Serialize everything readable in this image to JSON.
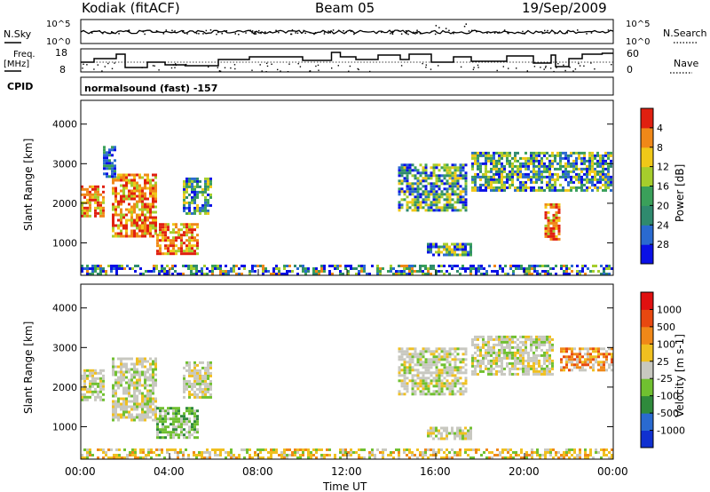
{
  "header": {
    "station": "Kodiak (fitACF)",
    "beam": "Beam 05",
    "date": "19/Sep/2009"
  },
  "nsky_panel": {
    "left_label": "N.Sky",
    "right_label": "N.Search",
    "left_ticks": [
      "10^5",
      "10^0"
    ],
    "right_ticks": [
      "10^5",
      "10^0"
    ]
  },
  "freq_panel": {
    "left_label_1": "Freq.",
    "left_label_2": "[MHz]",
    "right_label": "Nave",
    "left_ticks": [
      "18",
      "8"
    ],
    "right_ticks": [
      "60",
      "0"
    ]
  },
  "cpid": {
    "label": "CPID",
    "mode": "normalsound (fast) -157"
  },
  "x_axis": {
    "label": "Time UT",
    "ticks": [
      "00:00",
      "04:00",
      "08:00",
      "12:00",
      "16:00",
      "20:00",
      "00:00"
    ]
  },
  "chart_data": [
    {
      "type": "heatmap",
      "quantity": "Power",
      "colorbar_label": "Power [dB]",
      "xlabel": "Time UT",
      "ylabel": "Slant Range [km]",
      "xlim": [
        0,
        24
      ],
      "ylim": [
        180,
        4600
      ],
      "y_ticks": [
        "1000",
        "2000",
        "3000",
        "4000"
      ],
      "colorbar_ticks": [
        "4",
        "8",
        "12",
        "16",
        "20",
        "24",
        "28"
      ],
      "colorbar_colors": [
        "#0a10e6",
        "#2a6ad0",
        "#2f8a6e",
        "#3aa05a",
        "#a6cd2c",
        "#f0c818",
        "#f08818",
        "#e02010"
      ],
      "regions": [
        {
          "t0": 0.0,
          "t1": 1.0,
          "r0": 1650,
          "r1": 2450,
          "level": "high"
        },
        {
          "t0": 1.4,
          "t1": 3.4,
          "r0": 1200,
          "r1": 2750,
          "level": "high"
        },
        {
          "t0": 3.4,
          "t1": 5.3,
          "r0": 750,
          "r1": 1500,
          "level": "high"
        },
        {
          "t0": 4.6,
          "t1": 5.9,
          "r0": 1750,
          "r1": 2650,
          "level": "mid"
        },
        {
          "t0": 1.0,
          "t1": 1.6,
          "r0": 2700,
          "r1": 3450,
          "level": "low"
        },
        {
          "t0": 14.3,
          "t1": 17.4,
          "r0": 1800,
          "r1": 3000,
          "level": "mid"
        },
        {
          "t0": 15.6,
          "t1": 17.6,
          "r0": 700,
          "r1": 1000,
          "level": "mid"
        },
        {
          "t0": 17.6,
          "t1": 23.9,
          "r0": 2300,
          "r1": 3300,
          "level": "mid"
        },
        {
          "t0": 20.9,
          "t1": 21.5,
          "r0": 1100,
          "r1": 2000,
          "level": "high"
        },
        {
          "t0": 0.0,
          "t1": 24.0,
          "r0": 200,
          "r1": 450,
          "level": "ground"
        }
      ]
    },
    {
      "type": "heatmap",
      "quantity": "Velocity",
      "colorbar_label": "Velocity [m s-1]",
      "xlabel": "Time UT",
      "ylabel": "Slant Range [km]",
      "xlim": [
        0,
        24
      ],
      "ylim": [
        180,
        4600
      ],
      "y_ticks": [
        "1000",
        "2000",
        "3000",
        "4000"
      ],
      "colorbar_ticks": [
        "1000",
        "500",
        "100",
        "25",
        "-25",
        "-100",
        "-500",
        "-1000"
      ],
      "colorbar_colors": [
        "#1030d0",
        "#2a6ad0",
        "#2f8a3c",
        "#70c030",
        "#c8c8c0",
        "#f0c020",
        "#f08818",
        "#e84810",
        "#e01010"
      ],
      "regions": [
        {
          "t0": 0.0,
          "t1": 1.0,
          "r0": 1650,
          "r1": 2450,
          "level": "gray"
        },
        {
          "t0": 1.4,
          "t1": 3.4,
          "r0": 1200,
          "r1": 2750,
          "level": "gray"
        },
        {
          "t0": 3.4,
          "t1": 5.3,
          "r0": 750,
          "r1": 1500,
          "level": "green"
        },
        {
          "t0": 4.6,
          "t1": 5.9,
          "r0": 1750,
          "r1": 2650,
          "level": "gray"
        },
        {
          "t0": 14.3,
          "t1": 17.4,
          "r0": 1800,
          "r1": 3000,
          "level": "gray"
        },
        {
          "t0": 15.6,
          "t1": 17.6,
          "r0": 700,
          "r1": 1000,
          "level": "gray"
        },
        {
          "t0": 17.6,
          "t1": 21.3,
          "r0": 2300,
          "r1": 3300,
          "level": "gray"
        },
        {
          "t0": 21.6,
          "t1": 23.9,
          "r0": 2400,
          "r1": 3000,
          "level": "orange"
        },
        {
          "t0": 0.0,
          "t1": 24.0,
          "r0": 200,
          "r1": 450,
          "level": "ground"
        }
      ]
    }
  ]
}
